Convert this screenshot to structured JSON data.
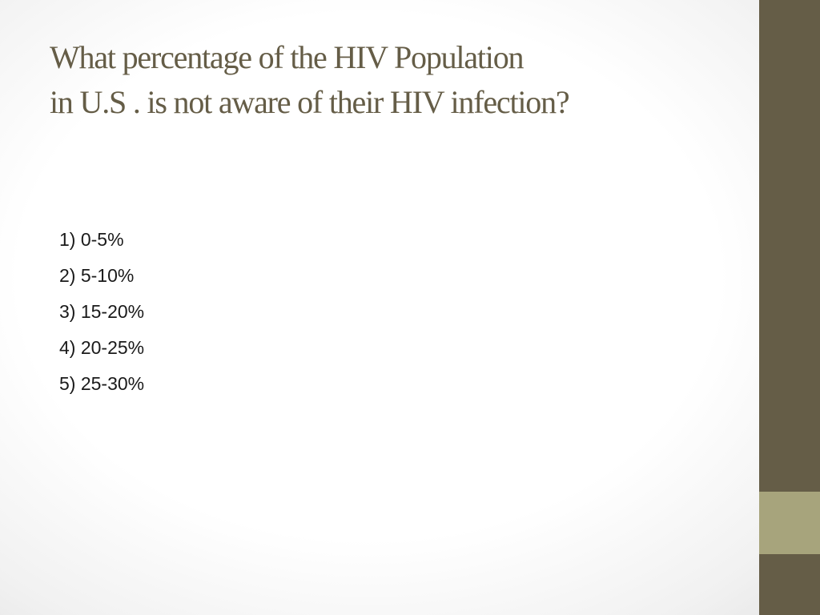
{
  "slide": {
    "title_lines": [
      "What percentage of the HIV Population",
      "in U.S . is not aware of their HIV infection?"
    ],
    "options": [
      "1) 0-5%",
      "2) 5-10%",
      "3) 15-20%",
      "4) 20-25%",
      "5) 25-30%"
    ]
  },
  "colors": {
    "title": "#655d47",
    "sidebar": "#655d47",
    "sidebar_accent": "#a7a47c",
    "body_text": "#1a1a1a"
  }
}
